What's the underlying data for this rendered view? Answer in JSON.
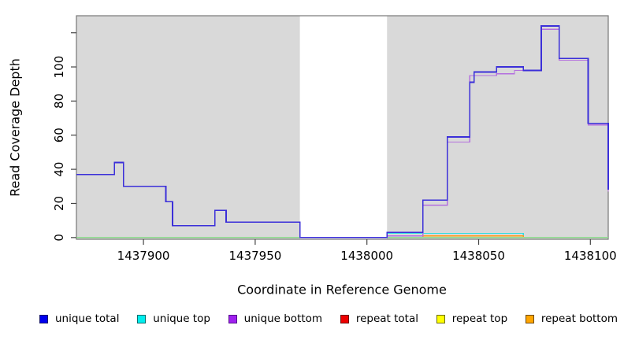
{
  "figure": {
    "ylabel": "Read Coverage Depth",
    "xlabel": "Coordinate in Reference Genome"
  },
  "legend": {
    "items": [
      {
        "label": "unique total",
        "color": "#0000EE",
        "border": "#1A1A6E"
      },
      {
        "label": "unique top",
        "color": "#00EEEE",
        "border": "#0A6E6E"
      },
      {
        "label": "unique bottom",
        "color": "#A020F0",
        "border": "#55128A"
      },
      {
        "label": "repeat total",
        "color": "#EE0000",
        "border": "#6E0A0A"
      },
      {
        "label": "repeat top",
        "color": "#FFFF00",
        "border": "#6E6E0A"
      },
      {
        "label": "repeat bottom",
        "color": "#FFA500",
        "border": "#6E4A0A"
      }
    ]
  },
  "chart_data": {
    "type": "line",
    "subtype": "step",
    "title": "",
    "xlabel": "Coordinate in Reference Genome",
    "ylabel": "Read Coverage Depth",
    "xlim": [
      1437870,
      1438108
    ],
    "ylim": [
      -1,
      130
    ],
    "grid": false,
    "legend_position": "bottom",
    "plot_bg_color": "#D9D9D9",
    "border_color": "#777777",
    "tick_color": "#444444",
    "masked_region": {
      "x0": 1437970,
      "x1": 1438009,
      "color": "#FFFFFF"
    },
    "xticks": [
      {
        "value": 1437900,
        "label": "1437900"
      },
      {
        "value": 1437950,
        "label": "1437950"
      },
      {
        "value": 1438000,
        "label": "1438000"
      },
      {
        "value": 1438050,
        "label": "1438050"
      },
      {
        "value": 1438100,
        "label": "1438100"
      }
    ],
    "yticks": [
      {
        "value": 0,
        "label": "0"
      },
      {
        "value": 20,
        "label": "20"
      },
      {
        "value": 40,
        "label": "40"
      },
      {
        "value": 60,
        "label": "60"
      },
      {
        "value": 80,
        "label": "80"
      },
      {
        "value": 100,
        "label": "100"
      },
      {
        "value": 120,
        "label": ""
      }
    ],
    "series": [
      {
        "name": "repeat top",
        "color": "#FFFF00",
        "width": 1.2,
        "points": [
          [
            1437870,
            0
          ],
          [
            1438108,
            0
          ]
        ]
      },
      {
        "name": "repeat total",
        "color": "#E03030",
        "width": 1.3,
        "points": [
          [
            1437870,
            0
          ],
          [
            1438009,
            1
          ],
          [
            1438070,
            0
          ],
          [
            1438108,
            0
          ]
        ]
      },
      {
        "name": "unique top",
        "color": "#30DEDE",
        "width": 1.3,
        "points": [
          [
            1437870,
            0
          ],
          [
            1438009,
            2.5
          ],
          [
            1438070,
            0
          ],
          [
            1438108,
            0
          ]
        ]
      },
      {
        "name": "repeat bottom",
        "color": "#FF9913",
        "width": 1.5,
        "points": [
          [
            1437870,
            0
          ],
          [
            1438025,
            1
          ],
          [
            1438070,
            0
          ],
          [
            1438108,
            0
          ]
        ]
      },
      {
        "name": "baseline (unlabeled green)",
        "color": "#8FD98F",
        "width": 1.2,
        "points": [
          [
            1437870,
            0
          ],
          [
            1438108,
            0
          ]
        ]
      },
      {
        "name": "unique bottom",
        "color": "#B46FDE",
        "width": 1.3,
        "points": [
          [
            1437870,
            37
          ],
          [
            1437887,
            44
          ],
          [
            1437891,
            30
          ],
          [
            1437910,
            21
          ],
          [
            1437913,
            7
          ],
          [
            1437932,
            16
          ],
          [
            1437937,
            9
          ],
          [
            1437970,
            0
          ],
          [
            1438009,
            1
          ],
          [
            1438025,
            19
          ],
          [
            1438036,
            56
          ],
          [
            1438046,
            95
          ],
          [
            1438058,
            96
          ],
          [
            1438066,
            98
          ],
          [
            1438078,
            122
          ],
          [
            1438086,
            104
          ],
          [
            1438099,
            66
          ],
          [
            1438108,
            27
          ]
        ]
      },
      {
        "name": "unique total",
        "color": "#3B2FD9",
        "width": 1.7,
        "points": [
          [
            1437870,
            37
          ],
          [
            1437887,
            44
          ],
          [
            1437891,
            30
          ],
          [
            1437910,
            21
          ],
          [
            1437913,
            7
          ],
          [
            1437932,
            16
          ],
          [
            1437937,
            9
          ],
          [
            1437970,
            0
          ],
          [
            1438009,
            3
          ],
          [
            1438025,
            22
          ],
          [
            1438036,
            59
          ],
          [
            1438046,
            91
          ],
          [
            1438048,
            97
          ],
          [
            1438058,
            100
          ],
          [
            1438070,
            98
          ],
          [
            1438078,
            124
          ],
          [
            1438086,
            105
          ],
          [
            1438099,
            67
          ],
          [
            1438108,
            28
          ]
        ]
      }
    ]
  }
}
